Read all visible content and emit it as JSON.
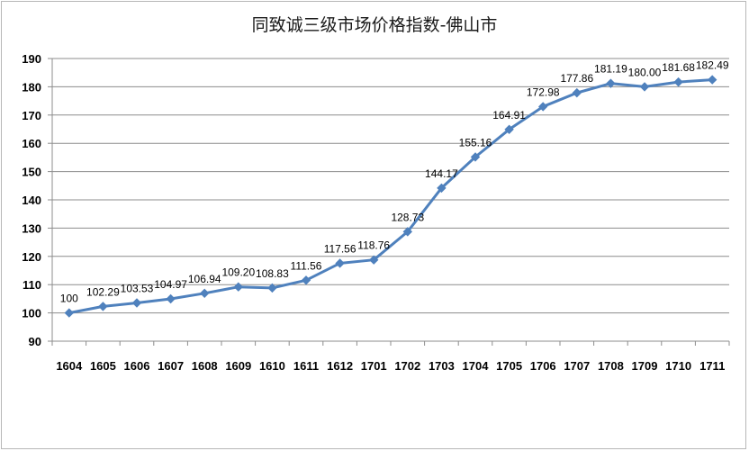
{
  "chart_data": {
    "type": "line",
    "title": "同致诚三级市场价格指数-佛山市",
    "xlabel": "",
    "ylabel": "",
    "categories": [
      "1604",
      "1605",
      "1606",
      "1607",
      "1608",
      "1609",
      "1610",
      "1611",
      "1612",
      "1701",
      "1702",
      "1703",
      "1704",
      "1705",
      "1706",
      "1707",
      "1708",
      "1709",
      "1710",
      "1711"
    ],
    "series": [
      {
        "values": [
          100,
          102.29,
          103.53,
          104.97,
          106.94,
          109.2,
          108.83,
          111.56,
          117.56,
          118.76,
          128.73,
          144.17,
          155.16,
          164.91,
          172.98,
          177.86,
          181.19,
          180.0,
          181.68,
          182.49
        ],
        "labels": [
          "100",
          "102.29",
          "103.53",
          "104.97",
          "106.94",
          "109.20",
          "108.83",
          "111.56",
          "117.56",
          "118.76",
          "128.73",
          "144.17",
          "155.16",
          "164.91",
          "172.98",
          "177.86",
          "181.19",
          "180.00",
          "181.68",
          "182.49"
        ],
        "color": "#4f81bd"
      }
    ],
    "ylim": [
      90,
      190
    ],
    "yticks": [
      "90",
      "100",
      "110",
      "120",
      "130",
      "140",
      "150",
      "160",
      "170",
      "180",
      "190"
    ],
    "grid": true,
    "legend": "none"
  }
}
